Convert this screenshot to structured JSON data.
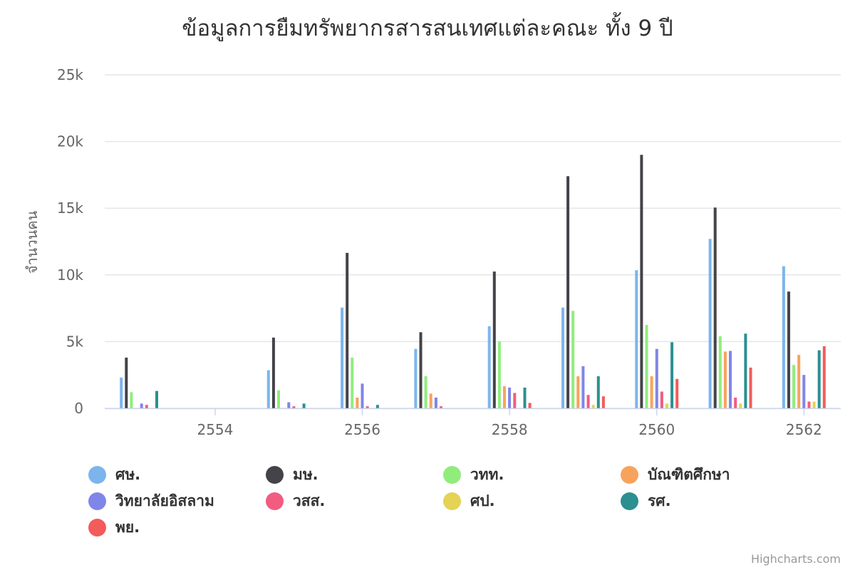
{
  "chart_data": {
    "type": "bar",
    "title": "ข้อมูลการยืมทรัพยากรสารสนเทศแต่ละคณะ ทั้ง 9 ปี",
    "ylabel": "จำนวนคน",
    "xlabel": "",
    "categories": [
      "2553",
      "2554",
      "2555",
      "2556",
      "2557",
      "2558",
      "2559",
      "2560",
      "2561",
      "2562"
    ],
    "x_tick_labels": [
      "2554",
      "2556",
      "2558",
      "2560",
      "2562"
    ],
    "y_tick_labels": [
      "0",
      "5k",
      "10k",
      "15k",
      "20k",
      "25k"
    ],
    "ylim": [
      0,
      25000
    ],
    "grid": true,
    "legend_position": "bottom",
    "series": [
      {
        "name": "ศษ.",
        "color": "#7cb5ec",
        "values": [
          2300,
          0,
          2850,
          7550,
          4450,
          6150,
          7550,
          10350,
          12700,
          10650
        ]
      },
      {
        "name": "มษ.",
        "color": "#434348",
        "values": [
          3800,
          0,
          5300,
          11650,
          5700,
          10250,
          17400,
          19000,
          15050,
          8750
        ]
      },
      {
        "name": "วทท.",
        "color": "#90ed7d",
        "values": [
          1200,
          0,
          1350,
          3800,
          2400,
          5000,
          7300,
          6250,
          5400,
          3250
        ]
      },
      {
        "name": "บัณฑิตศึกษา",
        "color": "#f7a35c",
        "values": [
          0,
          0,
          0,
          800,
          1100,
          1650,
          2400,
          2400,
          4250,
          4000
        ]
      },
      {
        "name": "วิทยาลัยอิสลาม",
        "color": "#8085e9",
        "values": [
          350,
          0,
          450,
          1850,
          800,
          1550,
          3150,
          4450,
          4300,
          2500
        ]
      },
      {
        "name": "วสส.",
        "color": "#f15c80",
        "values": [
          250,
          0,
          150,
          150,
          150,
          1150,
          1000,
          1250,
          800,
          500
        ]
      },
      {
        "name": "ศป.",
        "color": "#e4d354",
        "values": [
          0,
          0,
          0,
          0,
          0,
          0,
          250,
          350,
          350,
          500
        ]
      },
      {
        "name": "รศ.",
        "color": "#2b908f",
        "values": [
          1300,
          0,
          350,
          250,
          0,
          1550,
          2400,
          4950,
          5600,
          4350
        ]
      },
      {
        "name": "พย.",
        "color": "#f45b5b",
        "values": [
          0,
          0,
          0,
          0,
          0,
          400,
          900,
          2200,
          3050,
          4650
        ]
      }
    ]
  },
  "credits": "Highcharts.com"
}
